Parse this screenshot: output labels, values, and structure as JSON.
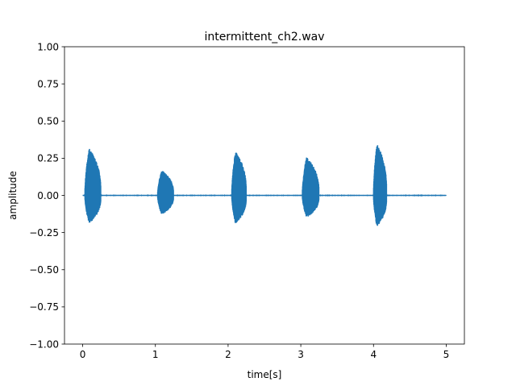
{
  "chart_data": {
    "type": "line",
    "title": "intermittent_ch2.wav",
    "xlabel": "time[s]",
    "ylabel": "amplitude",
    "xlim": [
      -0.25,
      5.25
    ],
    "ylim": [
      -1.0,
      1.0
    ],
    "x_ticks": [
      0,
      1,
      2,
      3,
      4,
      5
    ],
    "x_tick_labels": [
      "0",
      "1",
      "2",
      "3",
      "4",
      "5"
    ],
    "y_ticks": [
      -1.0,
      -0.75,
      -0.5,
      -0.25,
      0.0,
      0.25,
      0.5,
      0.75,
      1.0
    ],
    "y_tick_labels": [
      "−1.00",
      "−0.75",
      "−0.50",
      "−0.25",
      "0.00",
      "0.25",
      "0.50",
      "0.75",
      "1.00"
    ],
    "grid": false,
    "legend": "none",
    "signal_start": 0.0,
    "signal_end": 5.0,
    "baseline": 0.0,
    "bursts": [
      {
        "start": 0.03,
        "end": 0.25,
        "max": 0.32,
        "min": -0.19
      },
      {
        "start": 1.03,
        "end": 1.25,
        "max": 0.17,
        "min": -0.13
      },
      {
        "start": 2.05,
        "end": 2.25,
        "max": 0.3,
        "min": -0.19
      },
      {
        "start": 3.02,
        "end": 3.25,
        "max": 0.26,
        "min": -0.15
      },
      {
        "start": 4.0,
        "end": 4.18,
        "max": 0.35,
        "min": -0.21
      }
    ],
    "color": "#1f77b4"
  }
}
